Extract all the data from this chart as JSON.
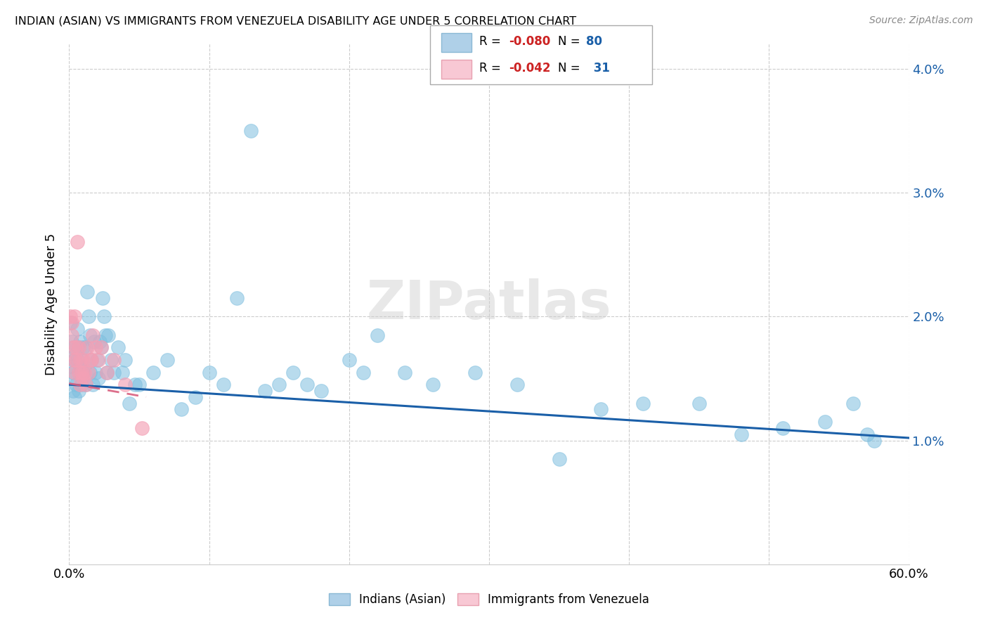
{
  "title": "INDIAN (ASIAN) VS IMMIGRANTS FROM VENEZUELA DISABILITY AGE UNDER 5 CORRELATION CHART",
  "source": "Source: ZipAtlas.com",
  "ylabel": "Disability Age Under 5",
  "xlim": [
    0.0,
    0.6
  ],
  "ylim": [
    0.0,
    0.042
  ],
  "ytick_labels": [
    "1.0%",
    "2.0%",
    "3.0%",
    "4.0%"
  ],
  "ytick_vals": [
    0.01,
    0.02,
    0.03,
    0.04
  ],
  "color_indian": "#7fbfdf",
  "color_venezuela": "#f4a0b5",
  "color_line_indian": "#1a5fa8",
  "color_line_venezuela": "#d95f7f",
  "watermark": "ZIPatlas",
  "ind_trend_x": [
    0.0,
    0.6
  ],
  "ind_trend_y": [
    0.0145,
    0.0102
  ],
  "ven_trend_x": [
    0.0,
    0.055
  ],
  "ven_trend_y": [
    0.0146,
    0.0135
  ],
  "indian_x": [
    0.001,
    0.002,
    0.002,
    0.003,
    0.003,
    0.003,
    0.004,
    0.004,
    0.004,
    0.005,
    0.005,
    0.006,
    0.006,
    0.007,
    0.007,
    0.007,
    0.008,
    0.008,
    0.009,
    0.009,
    0.01,
    0.01,
    0.011,
    0.012,
    0.012,
    0.013,
    0.014,
    0.015,
    0.015,
    0.016,
    0.017,
    0.018,
    0.019,
    0.02,
    0.021,
    0.022,
    0.023,
    0.024,
    0.025,
    0.026,
    0.027,
    0.028,
    0.03,
    0.032,
    0.035,
    0.038,
    0.04,
    0.043,
    0.047,
    0.05,
    0.06,
    0.07,
    0.08,
    0.09,
    0.1,
    0.11,
    0.12,
    0.13,
    0.14,
    0.15,
    0.16,
    0.17,
    0.18,
    0.2,
    0.21,
    0.22,
    0.24,
    0.26,
    0.29,
    0.32,
    0.35,
    0.38,
    0.41,
    0.45,
    0.48,
    0.51,
    0.54,
    0.56,
    0.57,
    0.575
  ],
  "indian_y": [
    0.0195,
    0.018,
    0.016,
    0.0175,
    0.0155,
    0.014,
    0.0165,
    0.015,
    0.0135,
    0.017,
    0.0145,
    0.0165,
    0.019,
    0.0175,
    0.0155,
    0.014,
    0.016,
    0.018,
    0.0145,
    0.0165,
    0.0155,
    0.0175,
    0.016,
    0.0175,
    0.0145,
    0.022,
    0.02,
    0.0155,
    0.0185,
    0.0165,
    0.0145,
    0.018,
    0.0155,
    0.0165,
    0.015,
    0.018,
    0.0175,
    0.0215,
    0.02,
    0.0185,
    0.0155,
    0.0185,
    0.0165,
    0.0155,
    0.0175,
    0.0155,
    0.0165,
    0.013,
    0.0145,
    0.0145,
    0.0155,
    0.0165,
    0.0125,
    0.0135,
    0.0155,
    0.0145,
    0.0215,
    0.035,
    0.014,
    0.0145,
    0.0155,
    0.0145,
    0.014,
    0.0165,
    0.0155,
    0.0185,
    0.0155,
    0.0145,
    0.0155,
    0.0145,
    0.0085,
    0.0125,
    0.013,
    0.013,
    0.0105,
    0.011,
    0.0115,
    0.013,
    0.0105,
    0.01
  ],
  "venezuela_x": [
    0.001,
    0.002,
    0.002,
    0.003,
    0.003,
    0.004,
    0.004,
    0.005,
    0.005,
    0.006,
    0.007,
    0.007,
    0.008,
    0.008,
    0.009,
    0.01,
    0.01,
    0.011,
    0.012,
    0.013,
    0.014,
    0.015,
    0.016,
    0.017,
    0.019,
    0.021,
    0.023,
    0.027,
    0.032,
    0.04,
    0.052
  ],
  "venezuela_y": [
    0.02,
    0.0195,
    0.0185,
    0.0175,
    0.0165,
    0.02,
    0.0155,
    0.0165,
    0.0175,
    0.026,
    0.0175,
    0.0155,
    0.0165,
    0.0145,
    0.0155,
    0.0165,
    0.015,
    0.0155,
    0.0145,
    0.0175,
    0.0155,
    0.0165,
    0.0165,
    0.0185,
    0.0175,
    0.0165,
    0.0175,
    0.0155,
    0.0165,
    0.0145,
    0.011
  ]
}
